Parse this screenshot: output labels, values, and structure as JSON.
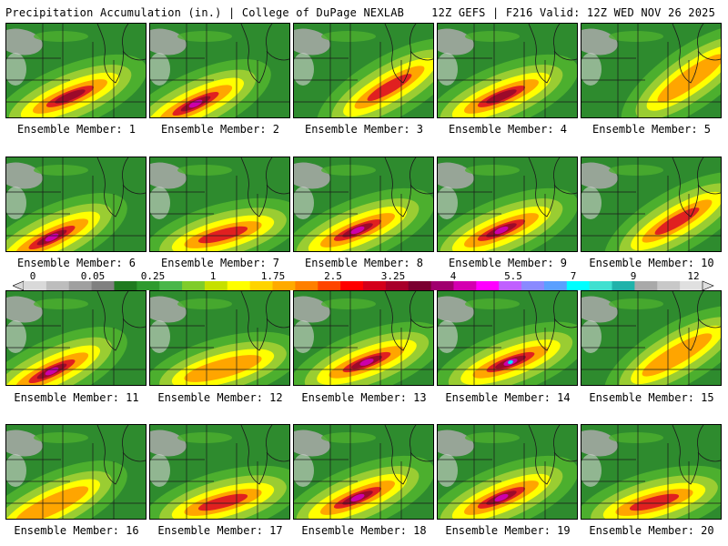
{
  "header": {
    "left": "Precipitation Accumulation (in.) | College of DuPage NEXLAB",
    "right": "12Z GEFS | F216 Valid: 12Z WED NOV 26 2025"
  },
  "panel_label_prefix": "Ensemble Member: ",
  "members": [
    {
      "label": "Ensemble Member: 1",
      "peak_in": 4.5,
      "band": "south-center"
    },
    {
      "label": "Ensemble Member: 2",
      "peak_in": 5.0,
      "band": "southwest"
    },
    {
      "label": "Ensemble Member: 3",
      "peak_in": 2.5,
      "band": "southeast"
    },
    {
      "label": "Ensemble Member: 4",
      "peak_in": 3.5,
      "band": "south-center"
    },
    {
      "label": "Ensemble Member: 5",
      "peak_in": 2.0,
      "band": "east"
    },
    {
      "label": "Ensemble Member: 6",
      "peak_in": 5.0,
      "band": "southwest"
    },
    {
      "label": "Ensemble Member: 7",
      "peak_in": 2.5,
      "band": "south"
    },
    {
      "label": "Ensemble Member: 8",
      "peak_in": 5.5,
      "band": "south-center"
    },
    {
      "label": "Ensemble Member: 9",
      "peak_in": 5.5,
      "band": "south-center"
    },
    {
      "label": "Ensemble Member: 10",
      "peak_in": 3.0,
      "band": "southeast"
    },
    {
      "label": "Ensemble Member: 11",
      "peak_in": 5.5,
      "band": "southwest"
    },
    {
      "label": "Ensemble Member: 12",
      "peak_in": 2.0,
      "band": "south"
    },
    {
      "label": "Ensemble Member: 13",
      "peak_in": 5.5,
      "band": "south-wide"
    },
    {
      "label": "Ensemble Member: 14",
      "peak_in": 7.0,
      "band": "south-wide"
    },
    {
      "label": "Ensemble Member: 15",
      "peak_in": 2.0,
      "band": "southeast"
    },
    {
      "label": "Ensemble Member: 16",
      "peak_in": 2.0,
      "band": "southwest"
    },
    {
      "label": "Ensemble Member: 17",
      "peak_in": 3.0,
      "band": "south"
    },
    {
      "label": "Ensemble Member: 18",
      "peak_in": 5.0,
      "band": "south-center"
    },
    {
      "label": "Ensemble Member: 19",
      "peak_in": 5.0,
      "band": "south-center"
    },
    {
      "label": "Ensemble Member: 20",
      "peak_in": 3.0,
      "band": "south"
    }
  ],
  "colorbar": {
    "tick_labels": [
      "0",
      "0.05",
      "0.25",
      "1",
      "1.75",
      "2.5",
      "3.25",
      "4",
      "5.5",
      "7",
      "9",
      "12"
    ],
    "colors": [
      "#d9d9d9",
      "#bdbdbd",
      "#a0a0a0",
      "#808080",
      "#1f7a1f",
      "#2e9a2e",
      "#49b649",
      "#7fcc2a",
      "#c6e000",
      "#ffff00",
      "#ffd400",
      "#ffaa00",
      "#ff7f00",
      "#ff4500",
      "#ff0000",
      "#d4001a",
      "#a8002a",
      "#7a0030",
      "#a0006e",
      "#d400b0",
      "#ff00ff",
      "#c060ff",
      "#8a8aff",
      "#5aa0ff",
      "#00ffff",
      "#40e0d0",
      "#20b2aa",
      "#a9a9a9",
      "#c8c8c8",
      "#e0e0e0"
    ]
  },
  "map_colors": {
    "base_green": "#2e8b2e",
    "light_green": "#4caf2e",
    "lime": "#9acd32",
    "yellow": "#ffff00",
    "orange": "#ffa500",
    "red": "#e02020",
    "darkred": "#9c0a2a",
    "magenta": "#cc00aa",
    "cyan": "#00e5ff",
    "gray": "#a9a9a9",
    "lightgray": "#d3d3d3"
  }
}
